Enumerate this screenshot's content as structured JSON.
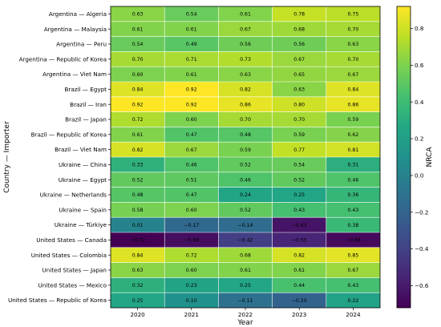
{
  "chart_data": {
    "type": "heatmap",
    "xlabel": "Year",
    "ylabel": "Country — Importer",
    "colorbar_label": "NRCA",
    "colormap": "viridis",
    "vmin": -0.72,
    "vmax": 0.92,
    "colorbar_ticks": [
      -0.6,
      -0.4,
      -0.2,
      0.0,
      0.2,
      0.4,
      0.6,
      0.8
    ],
    "colorbar_tick_labels": [
      "−0.6",
      "−0.4",
      "−0.2",
      "0.0",
      "0.2",
      "0.4",
      "0.6",
      "0.8"
    ],
    "columns": [
      "2020",
      "2021",
      "2022",
      "2023",
      "2024"
    ],
    "rows": [
      "Argentina — Algeria",
      "Argentina — Malaysia",
      "Argentina — Peru",
      "Argentina — Republic of Korea",
      "Argentina — Viet Nam",
      "Brazil — Egypt",
      "Brazil — Iran",
      "Brazil — Japan",
      "Brazil — Republic of Korea",
      "Brazil — Viet Nam",
      "Ukraine — China",
      "Ukraine — Egypt",
      "Ukraine — Netherlands",
      "Ukraine — Spain",
      "Ukraine — Türkiye",
      "United States — Canada",
      "United States — Colombia",
      "United States — Japan",
      "United States — Mexico",
      "United States — Republic of Korea"
    ],
    "values": [
      [
        0.63,
        0.54,
        0.61,
        0.78,
        0.75
      ],
      [
        0.61,
        0.61,
        0.67,
        0.68,
        0.7
      ],
      [
        0.54,
        0.49,
        0.56,
        0.56,
        0.63
      ],
      [
        0.7,
        0.71,
        0.73,
        0.67,
        0.7
      ],
      [
        0.6,
        0.61,
        0.63,
        0.65,
        0.67
      ],
      [
        0.84,
        0.92,
        0.82,
        0.63,
        0.84
      ],
      [
        0.92,
        0.92,
        0.86,
        0.8,
        0.86
      ],
      [
        0.72,
        0.6,
        0.7,
        0.7,
        0.59
      ],
      [
        0.61,
        0.47,
        0.48,
        0.59,
        0.62
      ],
      [
        0.82,
        0.67,
        0.59,
        0.77,
        0.81
      ],
      [
        0.33,
        0.46,
        0.52,
        0.54,
        0.31
      ],
      [
        0.52,
        0.51,
        0.46,
        0.52,
        0.46
      ],
      [
        0.48,
        0.47,
        0.24,
        0.25,
        0.36
      ],
      [
        0.58,
        0.6,
        0.52,
        0.43,
        0.43
      ],
      [
        0.01,
        -0.17,
        -0.14,
        -0.63,
        0.38
      ],
      [
        -0.72,
        -0.66,
        -0.42,
        -0.55,
        -0.68
      ],
      [
        0.84,
        0.72,
        0.68,
        0.82,
        0.85
      ],
      [
        0.63,
        0.6,
        0.61,
        0.61,
        0.67
      ],
      [
        0.32,
        0.23,
        0.25,
        0.44,
        0.43
      ],
      [
        0.25,
        0.1,
        -0.11,
        -0.2,
        0.22
      ]
    ],
    "cell_labels": [
      [
        "0.63",
        "0.54",
        "0.61",
        "0.78",
        "0.75"
      ],
      [
        "0.61",
        "0.61",
        "0.67",
        "0.68",
        "0.70"
      ],
      [
        "0.54",
        "0.49",
        "0.56",
        "0.56",
        "0.63"
      ],
      [
        "0.70",
        "0.71",
        "0.73",
        "0.67",
        "0.70"
      ],
      [
        "0.60",
        "0.61",
        "0.63",
        "0.65",
        "0.67"
      ],
      [
        "0.84",
        "0.92",
        "0.82",
        "0.63",
        "0.84"
      ],
      [
        "0.92",
        "0.92",
        "0.86",
        "0.80",
        "0.86"
      ],
      [
        "0.72",
        "0.60",
        "0.70",
        "0.70",
        "0.59"
      ],
      [
        "0.61",
        "0.47",
        "0.48",
        "0.59",
        "0.62"
      ],
      [
        "0.82",
        "0.67",
        "0.59",
        "0.77",
        "0.81"
      ],
      [
        "0.33",
        "0.46",
        "0.52",
        "0.54",
        "0.31"
      ],
      [
        "0.52",
        "0.51",
        "0.46",
        "0.52",
        "0.46"
      ],
      [
        "0.48",
        "0.47",
        "0.24",
        "0.25",
        "0.36"
      ],
      [
        "0.58",
        "0.60",
        "0.52",
        "0.43",
        "0.43"
      ],
      [
        "0.01",
        "−0.17",
        "−0.14",
        "−0.63",
        "0.38"
      ],
      [
        "−0.72",
        "−0.66",
        "−0.42",
        "−0.55",
        "−0.68"
      ],
      [
        "0.84",
        "0.72",
        "0.68",
        "0.82",
        "0.85"
      ],
      [
        "0.63",
        "0.60",
        "0.61",
        "0.61",
        "0.67"
      ],
      [
        "0.32",
        "0.23",
        "0.25",
        "0.44",
        "0.43"
      ],
      [
        "0.25",
        "0.10",
        "−0.11",
        "−0.20",
        "0.22"
      ]
    ],
    "grid": true
  }
}
